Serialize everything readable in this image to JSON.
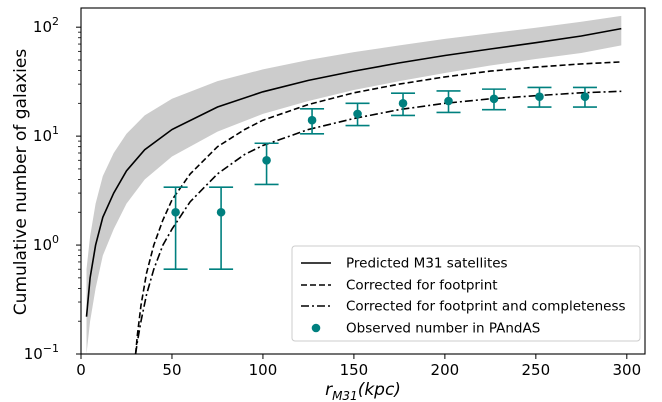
{
  "chart_data": {
    "type": "line",
    "xlabel": "r_M31(kpc)",
    "xlabel_main": "r",
    "xlabel_sub": "M31",
    "xlabel_tail": "(kpc)",
    "ylabel": "Cumulative number of galaxies",
    "xlim": [
      0,
      310
    ],
    "ylim": [
      0.1,
      150
    ],
    "yscale": "log",
    "x_ticks": [
      0,
      50,
      100,
      150,
      200,
      250,
      300
    ],
    "y_ticks": [
      {
        "value": 0.1,
        "base": "10",
        "exp": "−1"
      },
      {
        "value": 1,
        "base": "10",
        "exp": "0"
      },
      {
        "value": 10,
        "base": "10",
        "exp": "1"
      },
      {
        "value": 100,
        "base": "10",
        "exp": "2"
      }
    ],
    "legend_position": "lower-right",
    "grid": false,
    "colors": {
      "line": "#000000",
      "band": "#cccccc",
      "observed": "#00807f"
    },
    "series": [
      {
        "name": "Predicted M31 satellites",
        "style": "solid",
        "x": [
          3,
          5,
          8,
          12,
          18,
          25,
          35,
          50,
          75,
          100,
          125,
          150,
          175,
          200,
          225,
          250,
          275,
          297
        ],
        "y": [
          0.22,
          0.5,
          1.0,
          1.8,
          3.0,
          4.8,
          7.5,
          11.5,
          18.5,
          25.5,
          32.5,
          39.5,
          47,
          55,
          63,
          72,
          83,
          97
        ],
        "band_low": [
          0.1,
          0.2,
          0.4,
          0.8,
          1.4,
          2.4,
          4.0,
          6.5,
          11,
          16,
          21,
          26.5,
          32,
          38,
          44.5,
          51,
          58,
          68
        ],
        "band_high": [
          0.6,
          1.2,
          2.4,
          4.3,
          7.0,
          10.5,
          15.5,
          22,
          32,
          41,
          50,
          59,
          68,
          78,
          88,
          99,
          112,
          127
        ]
      },
      {
        "name": "Corrected for footprint",
        "style": "dashed",
        "x": [
          30,
          31,
          33,
          36,
          40,
          45,
          50,
          60,
          75,
          90,
          100,
          125,
          150,
          175,
          200,
          225,
          250,
          275,
          297
        ],
        "y": [
          0.1,
          0.15,
          0.28,
          0.55,
          1.0,
          1.7,
          2.6,
          4.5,
          8.0,
          11.5,
          14,
          19.5,
          25,
          30,
          35,
          39.5,
          43,
          46,
          48
        ]
      },
      {
        "name": "Corrected for footprint and completeness",
        "style": "dashdot",
        "x": [
          30,
          31,
          33,
          36,
          40,
          45,
          50,
          60,
          75,
          90,
          100,
          125,
          150,
          175,
          200,
          225,
          250,
          275,
          297
        ],
        "y": [
          0.1,
          0.13,
          0.2,
          0.35,
          0.6,
          1.0,
          1.4,
          2.5,
          4.5,
          6.8,
          8.2,
          11.5,
          14.5,
          17.5,
          20,
          22,
          23.5,
          25,
          25.8
        ]
      },
      {
        "name": "Observed number in PAndAS",
        "style": "points",
        "x": [
          52,
          77,
          102,
          127,
          152,
          177,
          202,
          227,
          252,
          277
        ],
        "y": [
          2,
          2,
          6,
          14,
          16,
          20,
          21,
          22,
          23,
          23
        ],
        "y_low": [
          0.6,
          0.6,
          3.6,
          10.5,
          12.5,
          15.5,
          16.5,
          17.5,
          18.5,
          18.5
        ],
        "y_high": [
          3.4,
          3.4,
          8.6,
          17.8,
          20,
          24.8,
          26,
          27,
          28,
          28
        ]
      }
    ]
  }
}
